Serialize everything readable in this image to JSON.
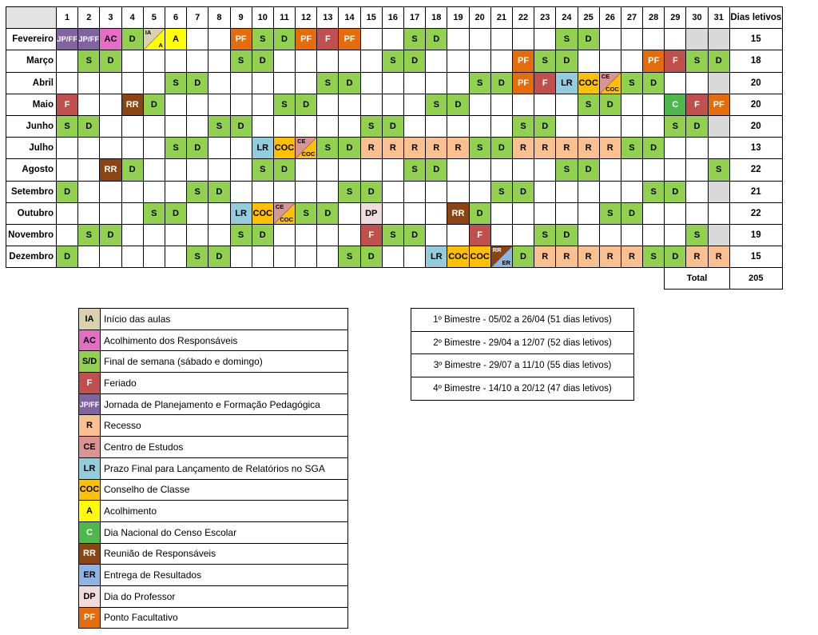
{
  "header": {
    "days": [
      "1",
      "2",
      "3",
      "4",
      "5",
      "6",
      "7",
      "8",
      "9",
      "10",
      "11",
      "12",
      "13",
      "14",
      "15",
      "16",
      "17",
      "18",
      "19",
      "20",
      "21",
      "22",
      "23",
      "24",
      "25",
      "26",
      "27",
      "28",
      "29",
      "30",
      "31"
    ],
    "dias_letivos_label": "Dias letivos"
  },
  "months": [
    {
      "name": "Fevereiro",
      "dias": "15",
      "cells": [
        "JP/FF",
        "JP/FF",
        "AC",
        "D",
        "IA/A",
        "A",
        "",
        "",
        "PF",
        "S",
        "D",
        "PF",
        "F",
        "PF",
        "",
        "",
        "S",
        "D",
        "",
        "",
        "",
        "",
        "",
        "S",
        "D",
        "",
        "",
        "",
        "",
        "X",
        "X"
      ]
    },
    {
      "name": "Março",
      "dias": "18",
      "cells": [
        "",
        "S",
        "D",
        "",
        "",
        "",
        "",
        "",
        "S",
        "D",
        "",
        "",
        "",
        "",
        "",
        "S",
        "D",
        "",
        "",
        "",
        "",
        "PF",
        "S",
        "D",
        "",
        "",
        "",
        "PF",
        "F",
        "S",
        "D"
      ]
    },
    {
      "name": "Abril",
      "dias": "20",
      "cells": [
        "",
        "",
        "",
        "",
        "",
        "S",
        "D",
        "",
        "",
        "",
        "",
        "",
        "S",
        "D",
        "",
        "",
        "",
        "",
        "",
        "S",
        "D",
        "PF",
        "F",
        "LR",
        "COC",
        "CE/COC",
        "S",
        "D",
        "",
        "",
        "X"
      ]
    },
    {
      "name": "Maio",
      "dias": "20",
      "cells": [
        "F",
        "",
        "",
        "RR",
        "D",
        "",
        "",
        "",
        "",
        "",
        "S",
        "D",
        "",
        "",
        "",
        "",
        "",
        "S",
        "D",
        "",
        "",
        "",
        "",
        "",
        "S",
        "D",
        "",
        "",
        "C",
        "F",
        "PF"
      ]
    },
    {
      "name": "Junho",
      "dias": "20",
      "cells": [
        "S",
        "D",
        "",
        "",
        "",
        "",
        "",
        "S",
        "D",
        "",
        "",
        "",
        "",
        "",
        "S",
        "D",
        "",
        "",
        "",
        "",
        "",
        "S",
        "D",
        "",
        "",
        "",
        "",
        "",
        "S",
        "D",
        "X"
      ]
    },
    {
      "name": "Julho",
      "dias": "13",
      "cells": [
        "",
        "",
        "",
        "",
        "",
        "S",
        "D",
        "",
        "",
        "LR",
        "COC",
        "CE/COC",
        "S",
        "D",
        "R",
        "R",
        "R",
        "R",
        "R",
        "S",
        "D",
        "R",
        "R",
        "R",
        "R",
        "R",
        "S",
        "D",
        "",
        "",
        ""
      ]
    },
    {
      "name": "Agosto",
      "dias": "22",
      "cells": [
        "",
        "",
        "RR",
        "D",
        "",
        "",
        "",
        "",
        "",
        "S",
        "D",
        "",
        "",
        "",
        "",
        "",
        "S",
        "D",
        "",
        "",
        "",
        "",
        "",
        "S",
        "D",
        "",
        "",
        "",
        "",
        "",
        "S"
      ]
    },
    {
      "name": "Setembro",
      "dias": "21",
      "cells": [
        "D",
        "",
        "",
        "",
        "",
        "",
        "S",
        "D",
        "",
        "",
        "",
        "",
        "",
        "S",
        "D",
        "",
        "",
        "",
        "",
        "",
        "S",
        "D",
        "",
        "",
        "",
        "",
        "",
        "S",
        "D",
        "",
        "X"
      ]
    },
    {
      "name": "Outubro",
      "dias": "22",
      "cells": [
        "",
        "",
        "",
        "",
        "S",
        "D",
        "",
        "",
        "LR",
        "COC",
        "CE/COC",
        "S",
        "D",
        "",
        "DP",
        "",
        "",
        "",
        "RR",
        "D",
        "",
        "",
        "",
        "",
        "",
        "S",
        "D",
        "",
        "",
        "",
        ""
      ]
    },
    {
      "name": "Novembro",
      "dias": "19",
      "cells": [
        "",
        "S",
        "D",
        "",
        "",
        "",
        "",
        "",
        "S",
        "D",
        "",
        "",
        "",
        "",
        "F",
        "S",
        "D",
        "",
        "",
        "F",
        "",
        "",
        "S",
        "D",
        "",
        "",
        "",
        "",
        "",
        "S",
        "X"
      ]
    },
    {
      "name": "Dezembro",
      "dias": "15",
      "cells": [
        "D",
        "",
        "",
        "",
        "",
        "",
        "S",
        "D",
        "",
        "",
        "",
        "",
        "",
        "S",
        "D",
        "",
        "",
        "LR",
        "COC",
        "COC",
        "RR/ER",
        "D",
        "R",
        "R",
        "R",
        "R",
        "R",
        "S",
        "D",
        "R",
        "R"
      ]
    }
  ],
  "total": {
    "label": "Total",
    "value": "205"
  },
  "legend": [
    {
      "code": "IA",
      "label": "Início das aulas"
    },
    {
      "code": "AC",
      "label": "Acolhimento dos Responsáveis"
    },
    {
      "code": "S/D",
      "label": "Final de semana (sábado e domingo)"
    },
    {
      "code": "F",
      "label": "Feriado"
    },
    {
      "code": "JP/FF",
      "label": "Jornada de Planejamento e Formação Pedagógica"
    },
    {
      "code": "R",
      "label": "Recesso"
    },
    {
      "code": "CE",
      "label": "Centro de Estudos"
    },
    {
      "code": "LR",
      "label": "Prazo Final para Lançamento de Relatórios no SGA"
    },
    {
      "code": "COC",
      "label": "Conselho de Classe"
    },
    {
      "code": "A",
      "label": "Acolhimento"
    },
    {
      "code": "C",
      "label": "Dia Nacional do Censo Escolar"
    },
    {
      "code": "RR",
      "label": "Reunião de Responsáveis"
    },
    {
      "code": "ER",
      "label": "Entrega de Resultados"
    },
    {
      "code": "DP",
      "label": "Dia do Professor"
    },
    {
      "code": "PF",
      "label": "Ponto Facultativo"
    }
  ],
  "bimestres": [
    "1º Bimestre - 05/02 a 26/04 (51 dias letivos)",
    "2º Bimestre - 29/04 a 12/07 (52 dias letivos)",
    "3º Bimestre - 29/07 a 11/10 (55 dias letivos)",
    "4º Bimestre - 14/10 a 20/12 (47 dias letivos)"
  ],
  "colors": {
    "S": "#92d050",
    "D": "#92d050",
    "S/D": "#92d050",
    "F": "#c0504d",
    "PF": "#e46c0a",
    "JP/FF": "#8064a2",
    "AC": "#e46ec6",
    "IA": "#d9d1b0",
    "A": "#ffff00",
    "R": "#fac090",
    "CE": "#d99594",
    "LR": "#93cddd",
    "COC": "#ffc000",
    "C": "#4eb74e",
    "RR": "#8b4513",
    "ER": "#8db4e2",
    "DP": "#f2dcdb",
    "X": "#d9d9d9"
  }
}
